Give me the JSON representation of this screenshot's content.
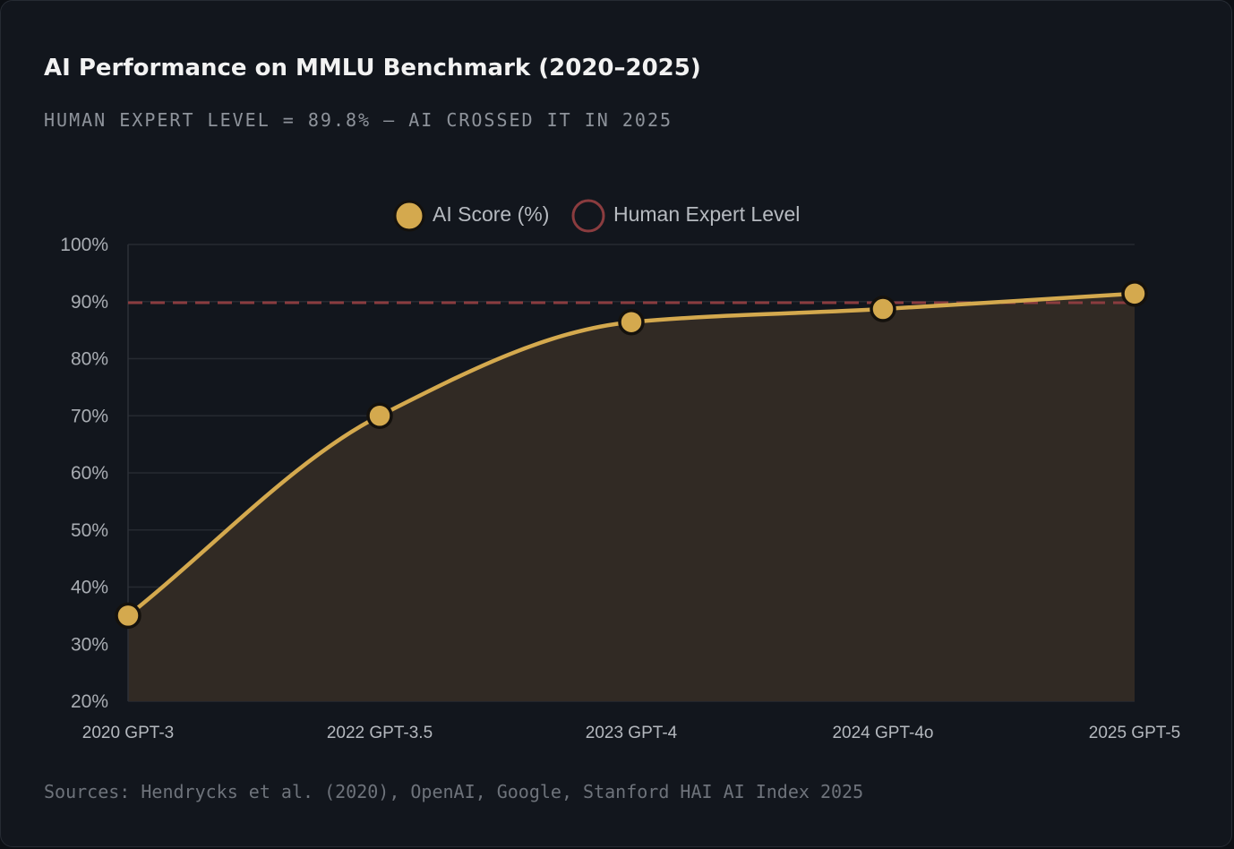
{
  "title": "AI Performance on MMLU Benchmark (2020–2025)",
  "subtitle": "HUMAN EXPERT LEVEL = 89.8% — AI CROSSED IT IN 2025",
  "source": "Sources: Hendrycks et al. (2020), OpenAI, Google, Stanford HAI AI Index 2025",
  "colors": {
    "score": "#d4a94e",
    "human": "#8b3c3f",
    "area": "#312a24",
    "grid": "#262a31",
    "marker_stroke": "#14110d"
  },
  "chart_data": {
    "type": "line",
    "categories": [
      "2020 GPT-3",
      "2022 GPT-3.5",
      "2023 GPT-4",
      "2024 GPT-4o",
      "2025 GPT-5"
    ],
    "series": [
      {
        "name": "AI Score (%)",
        "values": [
          35,
          70,
          86.4,
          88.7,
          91.4
        ]
      },
      {
        "name": "Human Expert Level",
        "values": [
          89.8,
          89.8,
          89.8,
          89.8,
          89.8
        ]
      }
    ],
    "ylim": [
      20,
      100
    ],
    "yticks": [
      100,
      90,
      80,
      70,
      60,
      50,
      40,
      30,
      20
    ],
    "ytick_labels": [
      "100%",
      "90%",
      "80%",
      "70%",
      "60%",
      "50%",
      "40%",
      "30%",
      "20%"
    ],
    "legend": {
      "position": "top-center"
    },
    "grid": true
  }
}
